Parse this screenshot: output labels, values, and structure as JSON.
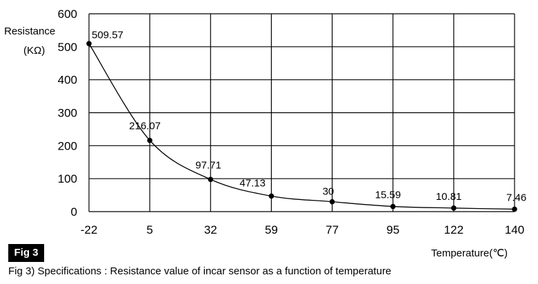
{
  "chart_data": {
    "type": "line",
    "xlabel": "Temperature(℃)",
    "ylabel_line1": "Resistance",
    "ylabel_line2": "(KΩ)",
    "x_tick_labels": [
      "-22",
      "5",
      "32",
      "59",
      "77",
      "95",
      "122",
      "140"
    ],
    "ylim": [
      0,
      600
    ],
    "y_ticks": [
      0,
      100,
      200,
      300,
      400,
      500,
      600
    ],
    "grid": true,
    "series": [
      {
        "x": [
          "-22",
          "5",
          "32",
          "59",
          "77",
          "95",
          "122",
          "140"
        ],
        "values": [
          509.57,
          216.07,
          97.71,
          47.13,
          30,
          15.59,
          10.81,
          7.46
        ],
        "labels": [
          "509.57",
          "216.07",
          "97.71",
          "47.13",
          "30",
          "15.59",
          "10.81",
          "7.46"
        ]
      }
    ],
    "badge": "Fig 3",
    "caption": "Fig 3) Specifications : Resistance value of incar sensor as a function of temperature"
  }
}
